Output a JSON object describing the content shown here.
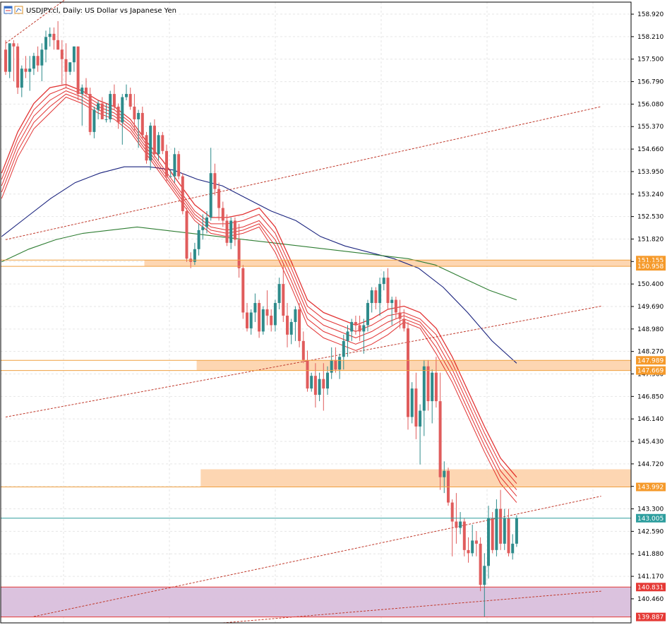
{
  "window": {
    "title": "USDJPY.cl, Daily:  US Dollar vs Japanese Yen",
    "icons": [
      "chart-window-icon",
      "chart-window-icon-2"
    ]
  },
  "colors": {
    "bull": "#2e8b8b",
    "bear": "#e05c5c",
    "ribbon": "#dd1111",
    "ma_blue": "#1a237e",
    "ma_green": "#2e7d32",
    "zone_orange": "#fdd4ae",
    "zone_line": "#f0a040",
    "zone_purple": "#d9bfdc",
    "channel": "#c0392b",
    "price_tag_orange": "#f59a2b",
    "price_tag_teal": "#2e9e9e",
    "price_tag_red": "#e53935",
    "grid": "#e6e6e6"
  },
  "chart_data": {
    "type": "candlestick",
    "symbol": "USDJPY.cl",
    "timeframe": "Daily",
    "title": "USDJPY.cl, Daily:  US Dollar vs Japanese Yen",
    "ylim": [
      139.7,
      159.3
    ],
    "grid": true,
    "y_ticks": [
      "158.920",
      "158.210",
      "157.500",
      "156.790",
      "156.080",
      "155.370",
      "154.660",
      "153.950",
      "153.240",
      "152.530",
      "151.820",
      "151.110",
      "150.400",
      "149.690",
      "148.980",
      "148.270",
      "147.560",
      "146.850",
      "146.140",
      "145.430",
      "144.720",
      "144.010",
      "143.300",
      "142.590",
      "141.880",
      "141.170",
      "140.460"
    ],
    "price_tags": [
      {
        "label": "151.155",
        "value": 151.155,
        "color": "orange"
      },
      {
        "label": "150.958",
        "value": 150.958,
        "color": "orange"
      },
      {
        "label": "147.989",
        "value": 147.989,
        "color": "orange"
      },
      {
        "label": "147.669",
        "value": 147.669,
        "color": "orange"
      },
      {
        "label": "143.992",
        "value": 143.992,
        "color": "orange"
      },
      {
        "label": "143.005",
        "value": 143.005,
        "color": "teal"
      },
      {
        "label": "140.831",
        "value": 140.831,
        "color": "red"
      },
      {
        "label": "139.887",
        "value": 139.887,
        "color": "red"
      }
    ],
    "zones": [
      {
        "name": "resistance-zone-151",
        "from": 150.958,
        "to": 151.155,
        "start_bar": 35,
        "kind": "orange"
      },
      {
        "name": "support-zone-147",
        "from": 147.669,
        "to": 147.989,
        "start_bar": 48,
        "kind": "orange"
      },
      {
        "name": "resistance-zone-144",
        "from": 143.992,
        "to": 144.55,
        "start_bar": 49,
        "kind": "orange"
      },
      {
        "name": "demand-zone-140",
        "from": 139.887,
        "to": 140.831,
        "start_bar": 0,
        "kind": "purple"
      }
    ],
    "horizontal_lines": [
      {
        "value": 151.155,
        "kind": "orange"
      },
      {
        "value": 150.958,
        "kind": "orange"
      },
      {
        "value": 147.989,
        "kind": "orange"
      },
      {
        "value": 147.669,
        "kind": "orange"
      },
      {
        "value": 143.992,
        "kind": "orange"
      },
      {
        "value": 143.005,
        "kind": "teal"
      },
      {
        "value": 140.831,
        "kind": "red"
      },
      {
        "value": 139.887,
        "kind": "red"
      }
    ],
    "channel_lines": [
      {
        "bar_a": 0,
        "price_a": 158.0,
        "bar_b": 60,
        "price_b": 163.6
      },
      {
        "bar_a": 0,
        "price_a": 151.8,
        "bar_b": 148,
        "price_b": 156.0
      },
      {
        "bar_a": 0,
        "price_a": 146.2,
        "bar_b": 148,
        "price_b": 149.7
      },
      {
        "bar_a": 7,
        "price_a": 139.9,
        "bar_b": 148,
        "price_b": 143.7
      },
      {
        "bar_a": 54,
        "price_a": 139.7,
        "bar_b": 148,
        "price_b": 140.7
      }
    ],
    "candles": [
      [
        157.8,
        158.1,
        157.0,
        157.1
      ],
      [
        157.1,
        158.0,
        156.9,
        158.0
      ],
      [
        158.0,
        158.1,
        156.8,
        157.9
      ],
      [
        157.9,
        158.0,
        156.4,
        156.6
      ],
      [
        156.6,
        157.3,
        156.3,
        157.2
      ],
      [
        157.2,
        157.6,
        156.9,
        157.1
      ],
      [
        157.1,
        157.6,
        156.5,
        157.2
      ],
      [
        157.2,
        157.7,
        157.0,
        157.6
      ],
      [
        157.6,
        157.9,
        157.1,
        157.3
      ],
      [
        157.3,
        158.0,
        156.8,
        157.8
      ],
      [
        157.8,
        158.4,
        157.4,
        158.2
      ],
      [
        158.2,
        158.5,
        157.9,
        158.3
      ],
      [
        158.3,
        158.5,
        157.8,
        158.1
      ],
      [
        158.1,
        158.7,
        157.8,
        157.8
      ],
      [
        157.8,
        158.1,
        156.7,
        157.5
      ],
      [
        157.5,
        158.0,
        156.6,
        157.1
      ],
      [
        157.1,
        157.4,
        157.0,
        157.4
      ],
      [
        157.4,
        157.9,
        157.1,
        157.9
      ],
      [
        157.9,
        157.9,
        156.2,
        156.4
      ],
      [
        156.4,
        156.7,
        155.4,
        156.6
      ],
      [
        156.6,
        156.9,
        156.3,
        156.4
      ],
      [
        156.4,
        156.6,
        155.1,
        155.2
      ],
      [
        155.2,
        156.0,
        155.0,
        155.9
      ],
      [
        155.9,
        156.2,
        155.6,
        156.1
      ],
      [
        156.1,
        156.3,
        155.6,
        155.6
      ],
      [
        155.6,
        156.1,
        155.5,
        155.6
      ],
      [
        155.6,
        156.5,
        155.5,
        156.4
      ],
      [
        156.4,
        156.7,
        155.9,
        156.0
      ],
      [
        156.0,
        156.1,
        155.3,
        155.5
      ],
      [
        155.5,
        156.4,
        154.8,
        156.3
      ],
      [
        156.3,
        156.7,
        156.2,
        156.4
      ],
      [
        156.4,
        156.6,
        155.9,
        156.0
      ],
      [
        156.0,
        156.4,
        155.2,
        155.6
      ],
      [
        155.6,
        155.9,
        154.7,
        155.8
      ],
      [
        155.8,
        156.0,
        155.0,
        155.1
      ],
      [
        155.1,
        155.2,
        154.2,
        154.3
      ],
      [
        154.3,
        155.5,
        154.0,
        155.4
      ],
      [
        155.4,
        155.6,
        154.4,
        154.5
      ],
      [
        154.5,
        155.2,
        154.3,
        155.1
      ],
      [
        155.1,
        155.2,
        154.5,
        154.6
      ],
      [
        154.6,
        154.8,
        153.6,
        153.8
      ],
      [
        153.8,
        154.0,
        153.8,
        153.8
      ],
      [
        153.8,
        154.7,
        153.6,
        154.5
      ],
      [
        154.5,
        154.6,
        153.7,
        153.8
      ],
      [
        153.8,
        153.9,
        152.6,
        152.7
      ],
      [
        152.7,
        152.8,
        151.1,
        151.2
      ],
      [
        151.2,
        151.4,
        150.9,
        151.1
      ],
      [
        151.1,
        151.7,
        151.0,
        151.5
      ],
      [
        151.5,
        152.3,
        151.3,
        152.1
      ],
      [
        152.1,
        152.6,
        151.8,
        152.2
      ],
      [
        152.2,
        152.7,
        152.0,
        152.5
      ],
      [
        152.5,
        154.7,
        152.4,
        153.9
      ],
      [
        153.9,
        154.2,
        153.2,
        153.4
      ],
      [
        153.4,
        153.6,
        152.4,
        152.8
      ],
      [
        152.8,
        153.0,
        152.2,
        152.4
      ],
      [
        152.4,
        152.6,
        151.6,
        151.7
      ],
      [
        151.7,
        152.5,
        151.5,
        152.4
      ],
      [
        152.4,
        152.5,
        151.6,
        151.8
      ],
      [
        151.8,
        152.3,
        150.6,
        150.9
      ],
      [
        150.9,
        151.0,
        149.3,
        149.5
      ],
      [
        149.5,
        149.8,
        148.9,
        149.0
      ],
      [
        149.0,
        149.6,
        148.8,
        149.5
      ],
      [
        149.5,
        150.1,
        149.2,
        149.8
      ],
      [
        149.8,
        149.9,
        148.7,
        148.9
      ],
      [
        148.9,
        149.7,
        148.8,
        149.6
      ],
      [
        149.6,
        150.2,
        149.1,
        149.4
      ],
      [
        149.4,
        149.6,
        148.9,
        149.1
      ],
      [
        149.1,
        149.9,
        148.9,
        149.8
      ],
      [
        149.8,
        150.6,
        149.6,
        150.4
      ],
      [
        150.4,
        151.0,
        149.2,
        149.4
      ],
      [
        149.4,
        149.8,
        148.4,
        148.8
      ],
      [
        148.8,
        149.3,
        148.5,
        149.2
      ],
      [
        149.2,
        149.7,
        148.6,
        149.6
      ],
      [
        149.6,
        149.8,
        148.4,
        148.6
      ],
      [
        148.6,
        148.9,
        147.9,
        148.0
      ],
      [
        148.0,
        148.3,
        147.0,
        147.1
      ],
      [
        147.1,
        147.6,
        147.0,
        147.5
      ],
      [
        147.5,
        147.9,
        146.5,
        146.9
      ],
      [
        146.9,
        147.6,
        146.7,
        147.4
      ],
      [
        147.4,
        147.9,
        146.4,
        147.1
      ],
      [
        147.1,
        147.8,
        146.9,
        147.6
      ],
      [
        147.6,
        148.4,
        147.4,
        148.0
      ],
      [
        148.0,
        148.4,
        147.6,
        147.7
      ],
      [
        147.7,
        148.2,
        147.4,
        148.1
      ],
      [
        148.1,
        148.8,
        147.7,
        148.6
      ],
      [
        148.6,
        149.1,
        148.1,
        148.9
      ],
      [
        148.9,
        149.3,
        148.6,
        149.2
      ],
      [
        149.2,
        149.4,
        148.8,
        149.1
      ],
      [
        149.1,
        149.4,
        148.6,
        148.9
      ],
      [
        148.9,
        149.3,
        148.2,
        149.1
      ],
      [
        149.1,
        149.9,
        148.9,
        149.8
      ],
      [
        149.8,
        150.3,
        149.5,
        150.2
      ],
      [
        150.2,
        150.3,
        149.6,
        149.8
      ],
      [
        149.8,
        150.6,
        149.4,
        150.4
      ],
      [
        150.4,
        150.8,
        150.2,
        150.6
      ],
      [
        150.6,
        150.9,
        149.6,
        149.8
      ],
      [
        149.8,
        150.0,
        149.1,
        149.9
      ],
      [
        149.9,
        150.0,
        149.3,
        149.5
      ],
      [
        149.5,
        149.9,
        149.0,
        149.3
      ],
      [
        149.3,
        149.6,
        148.9,
        149.0
      ],
      [
        149.0,
        149.2,
        145.8,
        146.2
      ],
      [
        146.2,
        147.3,
        146.0,
        147.1
      ],
      [
        147.1,
        147.6,
        145.5,
        145.9
      ],
      [
        145.9,
        146.6,
        144.7,
        146.4
      ],
      [
        146.4,
        148.0,
        145.6,
        147.8
      ],
      [
        147.8,
        148.0,
        146.4,
        146.7
      ],
      [
        146.7,
        147.7,
        146.0,
        147.6
      ],
      [
        147.6,
        148.1,
        146.5,
        146.7
      ],
      [
        146.7,
        147.6,
        143.9,
        144.3
      ],
      [
        144.3,
        144.8,
        143.8,
        144.5
      ],
      [
        144.5,
        144.6,
        143.4,
        143.5
      ],
      [
        143.5,
        143.6,
        141.8,
        142.9
      ],
      [
        142.9,
        143.8,
        142.2,
        142.7
      ],
      [
        142.7,
        143.2,
        142.5,
        142.9
      ],
      [
        142.9,
        143.0,
        141.8,
        142.0
      ],
      [
        142.0,
        142.4,
        141.6,
        141.9
      ],
      [
        141.9,
        142.8,
        141.8,
        142.3
      ],
      [
        142.3,
        142.6,
        141.8,
        142.2
      ],
      [
        142.2,
        142.4,
        140.7,
        140.9
      ],
      [
        140.9,
        141.9,
        139.9,
        141.5
      ],
      [
        141.5,
        143.4,
        141.1,
        143.0
      ],
      [
        143.0,
        143.2,
        141.9,
        142.0
      ],
      [
        142.0,
        143.6,
        141.8,
        143.3
      ],
      [
        143.3,
        143.9,
        142.0,
        142.2
      ],
      [
        142.2,
        143.3,
        142.0,
        143.0
      ],
      [
        143.0,
        143.3,
        141.8,
        141.9
      ],
      [
        141.9,
        142.5,
        141.7,
        142.2
      ],
      [
        142.2,
        143.1,
        142.1,
        143.0
      ]
    ],
    "ribbon_lines": [
      [
        153.9,
        155.2,
        156.1,
        156.6,
        156.7,
        156.5,
        156.2,
        156.0,
        155.6,
        154.9,
        154.3,
        153.6,
        152.9,
        152.5,
        152.5,
        152.6,
        152.8,
        152.2,
        151.1,
        149.9,
        149.5,
        149.3,
        149.1,
        149.3,
        149.6,
        149.7,
        149.5,
        149.0,
        148.1,
        147.0,
        145.9,
        144.9,
        144.3
      ],
      [
        153.7,
        155.0,
        155.9,
        156.4,
        156.6,
        156.4,
        156.1,
        155.9,
        155.5,
        154.8,
        154.1,
        153.4,
        152.7,
        152.3,
        152.3,
        152.4,
        152.6,
        152.0,
        150.9,
        149.7,
        149.3,
        149.1,
        148.9,
        149.1,
        149.4,
        149.5,
        149.3,
        148.8,
        147.9,
        146.8,
        145.7,
        144.7,
        144.1
      ],
      [
        153.5,
        154.8,
        155.7,
        156.2,
        156.5,
        156.3,
        156.0,
        155.8,
        155.4,
        154.7,
        154.0,
        153.3,
        152.6,
        152.2,
        152.1,
        152.2,
        152.4,
        151.8,
        150.7,
        149.5,
        149.1,
        148.9,
        148.7,
        148.9,
        149.2,
        149.4,
        149.2,
        148.6,
        147.7,
        146.6,
        145.5,
        144.5,
        143.9
      ],
      [
        153.3,
        154.6,
        155.5,
        156.0,
        156.4,
        156.2,
        155.9,
        155.7,
        155.3,
        154.6,
        153.9,
        153.2,
        152.5,
        152.1,
        152.0,
        152.1,
        152.3,
        151.6,
        150.5,
        149.3,
        148.9,
        148.7,
        148.5,
        148.7,
        149.0,
        149.3,
        149.1,
        148.4,
        147.5,
        146.4,
        145.3,
        144.3,
        143.7
      ],
      [
        153.1,
        154.4,
        155.3,
        155.8,
        156.3,
        156.1,
        155.8,
        155.6,
        155.2,
        154.5,
        153.8,
        153.1,
        152.4,
        152.0,
        151.9,
        152.0,
        152.2,
        151.4,
        150.3,
        149.1,
        148.7,
        148.5,
        148.3,
        148.5,
        148.8,
        149.2,
        149.0,
        148.2,
        147.3,
        146.2,
        145.1,
        144.1,
        143.5
      ]
    ],
    "ma_blue": [
      151.9,
      152.5,
      153.1,
      153.6,
      153.9,
      154.1,
      154.1,
      154.0,
      153.7,
      153.5,
      153.1,
      152.7,
      152.4,
      151.9,
      151.6,
      151.4,
      151.2,
      150.9,
      150.3,
      149.5,
      148.6,
      147.9
    ],
    "ma_green": [
      151.1,
      151.5,
      151.8,
      152.0,
      152.1,
      152.2,
      152.1,
      152.0,
      151.9,
      151.8,
      151.7,
      151.6,
      151.5,
      151.4,
      151.3,
      151.2,
      151.0,
      150.6,
      150.2,
      149.9
    ]
  }
}
